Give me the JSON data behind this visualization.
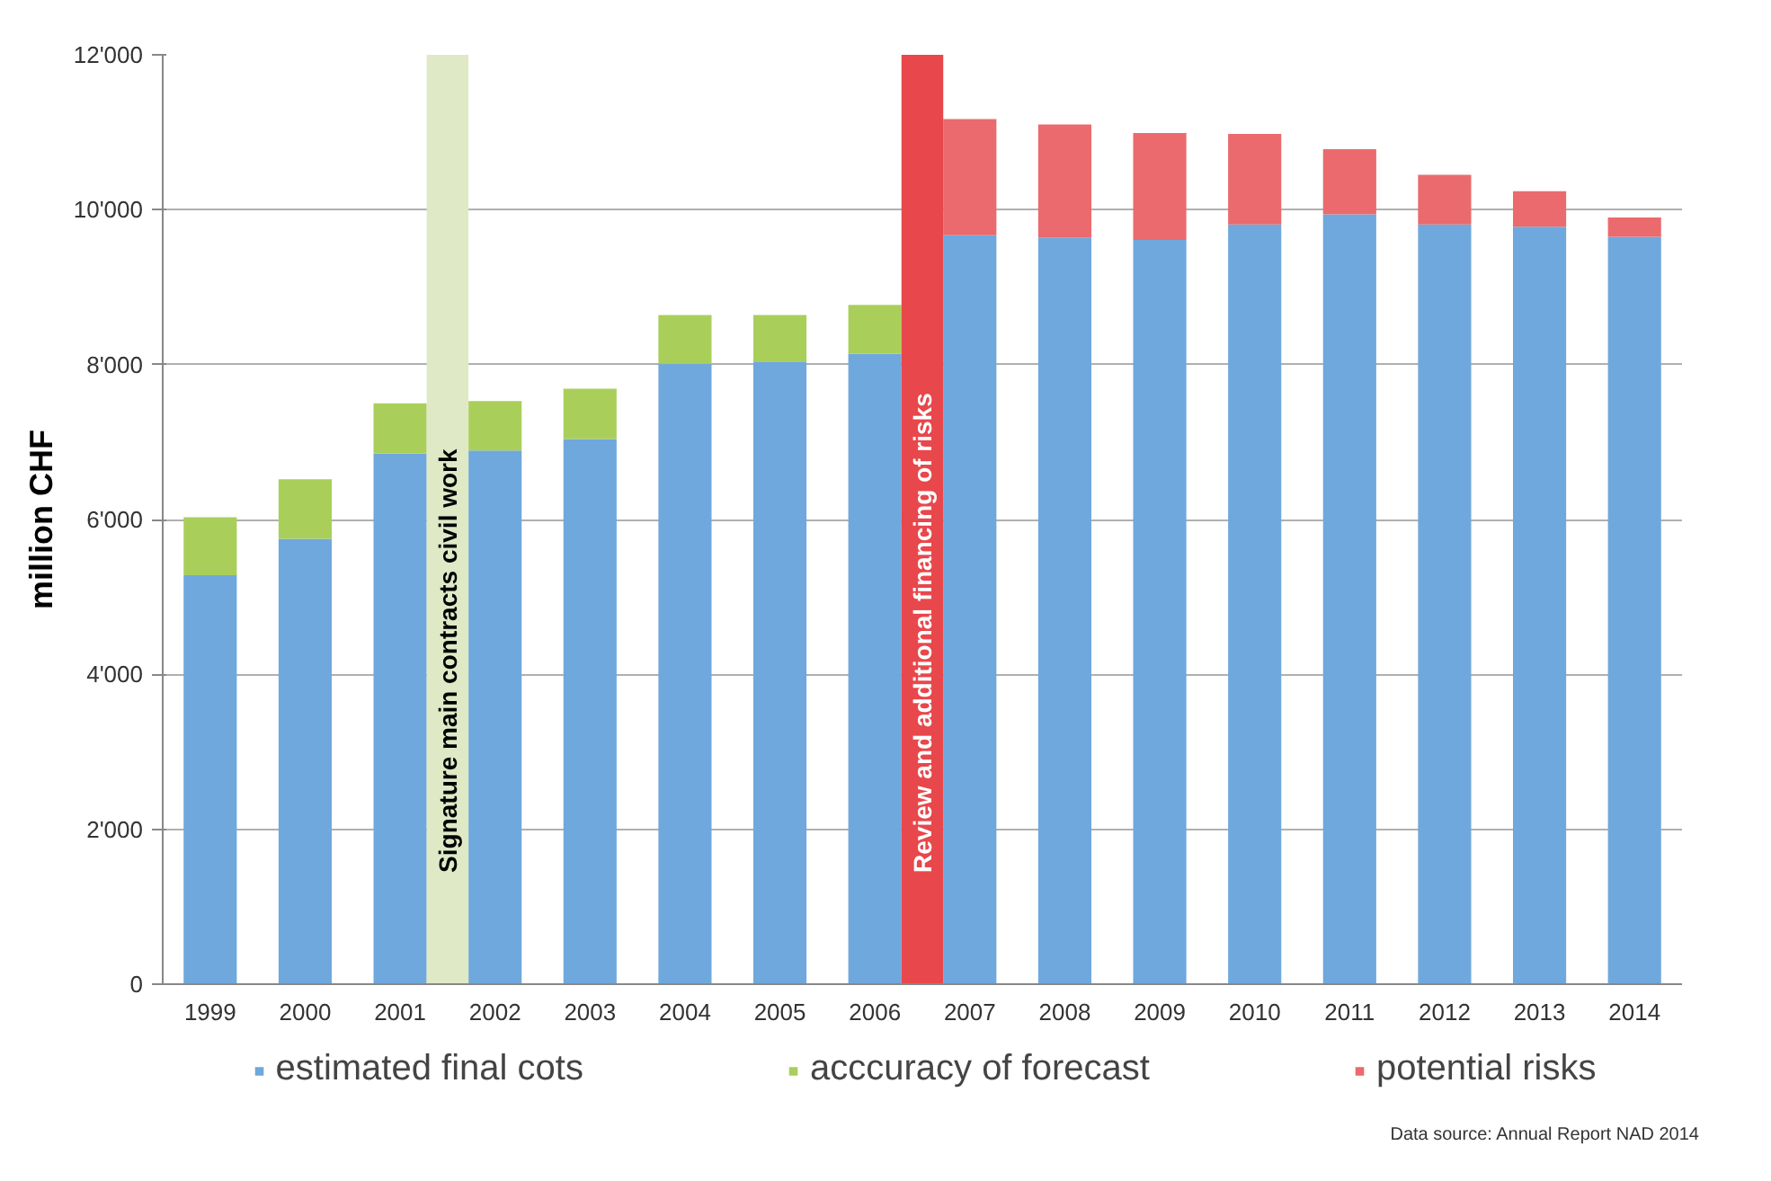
{
  "chart_data": {
    "type": "bar",
    "stacked": true,
    "ylabel": "million CHF",
    "categories": [
      "1999",
      "2000",
      "2001",
      "2002",
      "2003",
      "2004",
      "2005",
      "2006",
      "2007",
      "2008",
      "2009",
      "2010",
      "2011",
      "2012",
      "2013",
      "2014"
    ],
    "series": [
      {
        "name": "estimated final cots",
        "color": "#6fa8dc",
        "values": [
          5280,
          5750,
          6850,
          6890,
          7040,
          8010,
          8040,
          8140,
          9670,
          9640,
          9610,
          9810,
          9940,
          9810,
          9780,
          9650
        ]
      },
      {
        "name": "acccuracy of forecast",
        "color": "#a9cf5a",
        "values": [
          750,
          770,
          650,
          640,
          650,
          630,
          600,
          630,
          null,
          null,
          null,
          null,
          null,
          null,
          null,
          null
        ]
      },
      {
        "name": "potential risks",
        "color": "#ea6a6d",
        "values": [
          null,
          null,
          null,
          null,
          null,
          null,
          null,
          null,
          1500,
          1460,
          1380,
          1170,
          840,
          640,
          460,
          250
        ]
      }
    ],
    "ylim": [
      0,
      12000
    ],
    "yticks": [
      {
        "value": 0,
        "label": "0"
      },
      {
        "value": 2000,
        "label": "2'000"
      },
      {
        "value": 4000,
        "label": "4'000"
      },
      {
        "value": 6000,
        "label": "6'000"
      },
      {
        "value": 8000,
        "label": "8'000"
      },
      {
        "value": 10000,
        "label": "10'000"
      },
      {
        "value": 12000,
        "label": "12'000"
      }
    ],
    "bands": [
      {
        "axis": "x",
        "from": "2001",
        "to": "2002",
        "label": "Signature main contracts civil work",
        "color": "#dfe9c6"
      },
      {
        "axis": "x",
        "from": "2006",
        "to": "2007",
        "label": "Review and additional financing of risks",
        "color": "#e8474b"
      }
    ],
    "grid": "y",
    "legend": "bottom",
    "annotations": [
      "Data source: Annual Report NAD 2014"
    ]
  }
}
